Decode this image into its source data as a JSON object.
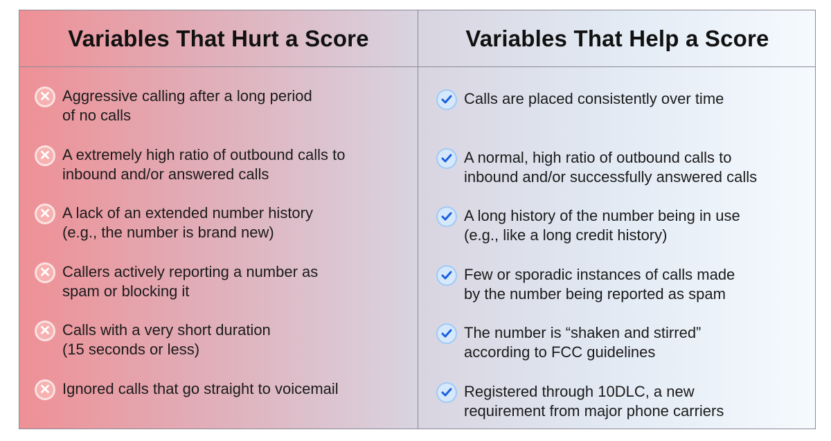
{
  "hurt": {
    "title": "Variables That Hurt a Score",
    "icon": "x-circle-icon",
    "items": [
      [
        "Aggressive calling after a long period",
        "of no calls"
      ],
      [
        "A extremely high ratio of outbound calls to",
        "inbound and/or answered calls"
      ],
      [
        "A lack of an extended number history",
        "(e.g., the number is brand new)"
      ],
      [
        "Callers actively reporting a number as",
        "spam or blocking it"
      ],
      [
        "Calls with a very short duration",
        "(15 seconds or less)"
      ],
      [
        "Ignored calls that go straight to voicemail",
        ""
      ]
    ]
  },
  "help": {
    "title": "Variables That Help a Score",
    "icon": "check-circle-icon",
    "items": [
      [
        "Calls are placed consistently over time",
        ""
      ],
      [
        "A normal, high ratio of outbound calls to",
        "inbound and/or successfully answered calls"
      ],
      [
        "A long history of the number being in use",
        "(e.g., like a long credit history)"
      ],
      [
        "Few or sporadic instances of calls made",
        "by the number being reported as spam"
      ],
      [
        "The number is “shaken and stirred”",
        "according to FCC guidelines"
      ],
      [
        "Registered through 10DLC, a new",
        "requirement from major phone carriers"
      ]
    ]
  },
  "colors": {
    "hurt": "#ee9095",
    "help": "#f6fafe",
    "check": "#1a5fe0",
    "x": "#f7b1b0"
  }
}
